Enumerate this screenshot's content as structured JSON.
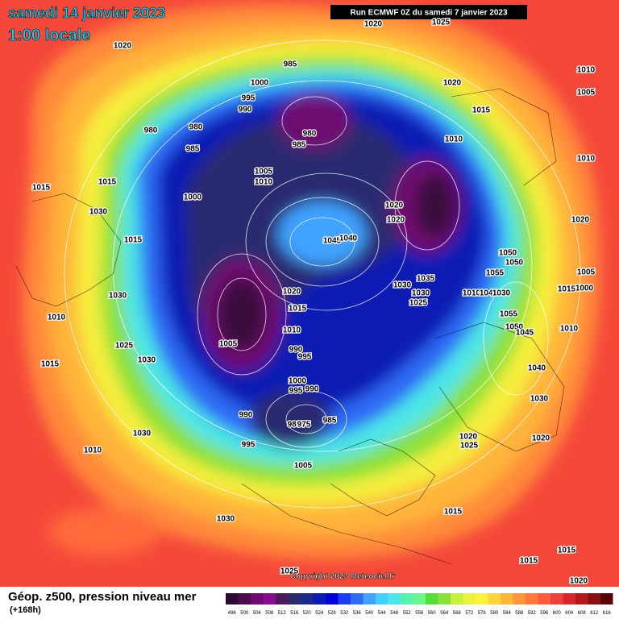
{
  "header": {
    "title": "samedi 14 janvier 2023",
    "subtitle": "1:00 locale",
    "run": "Run ECMWF 0Z du samedi 7 janvier 2023"
  },
  "footer": {
    "copyright": "Copyright 2023 Meteociel.fr",
    "caption": "Géop. z500, pression niveau mer",
    "lead": "(+168h)"
  },
  "colorbar": {
    "values": [
      496,
      500,
      504,
      508,
      512,
      516,
      520,
      524,
      528,
      532,
      536,
      540,
      544,
      548,
      552,
      556,
      560,
      564,
      568,
      572,
      576,
      580,
      584,
      588,
      592,
      596,
      600,
      604,
      608,
      612,
      616
    ],
    "colors": [
      "#2d0a35",
      "#4b0b4e",
      "#6f0a70",
      "#8a0b8f",
      "#4a1a5c",
      "#2c2a6f",
      "#1c2a8c",
      "#0a1cb4",
      "#0000d9",
      "#1b3cf0",
      "#2f6bf5",
      "#3fa3ff",
      "#44d1ff",
      "#4de6e6",
      "#55f2b0",
      "#6cf58a",
      "#55dd3a",
      "#8ae03a",
      "#c8f03a",
      "#eaf23c",
      "#fff03c",
      "#ffd23a",
      "#ffb43a",
      "#ff963a",
      "#ff7a3a",
      "#ff5a3a",
      "#f0403a",
      "#d4282a",
      "#b01a1a",
      "#8a1010",
      "#5a0505"
    ]
  },
  "isobar_labels": [
    1020,
    1025,
    1020,
    985,
    1000,
    995,
    990,
    1020,
    1015,
    1010,
    1005,
    980,
    980,
    980,
    985,
    985,
    1010,
    1010,
    1005,
    1010,
    1015,
    1015,
    1000,
    1020,
    1020,
    1030,
    1045,
    1040,
    1015,
    1020,
    1050,
    1050,
    1055,
    1035,
    1030,
    1030,
    1025,
    1020,
    1015,
    1005,
    1015,
    1000,
    1030,
    1010,
    1055,
    1050,
    1045,
    1010,
    1010,
    1025,
    1005,
    990,
    995,
    1030,
    1015,
    1040,
    1000,
    995,
    990,
    1030,
    990,
    980,
    975,
    985,
    1030,
    1020,
    1025,
    1020,
    995,
    1010,
    1005,
    1030,
    1015,
    1015,
    1015,
    1025,
    1020,
    1010,
    1040,
    1030
  ]
}
